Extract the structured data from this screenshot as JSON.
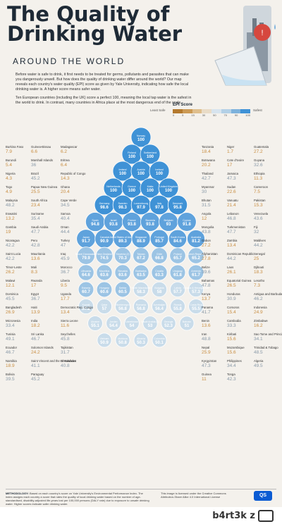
{
  "header": {
    "title_line1": "The Quality of",
    "title_line2": "Drinking Water",
    "subtitle": "AROUND THE WORLD",
    "intro_p1": "Before water is safe to drink, it first needs to be treated for germs, pollutants and parasites that can make you dangerously unwell. But how does the quality of drinking water differ around the world? Our map reveals each country's water quality (EPI) score as given by Yale University, indicating how safe the local drinking water is. A higher score means safer water.",
    "intro_p2": "Ten European countries (including the UK) score a perfect 100, meaning the local tap water is the safest in the world to drink. In contrast, many countries in Africa place at the most dangerous end of the scale."
  },
  "legend": {
    "title": "EPI Score",
    "least_safe": "Least Safe",
    "safest": "Safest",
    "ticks": [
      "0",
      "5",
      "15",
      "30",
      "50",
      "70",
      "90",
      "100"
    ],
    "colors": [
      "#b47a2e",
      "#cc9a55",
      "#dfbf8d",
      "#e9dcc7",
      "#d7e4ee",
      "#b3d0e6",
      "#7db2dc",
      "#3f92d6"
    ]
  },
  "footer": {
    "methodology_label": "METHODOLOGY:",
    "methodology": "Based on each country's score on Yale University's Environmental Performance Index. The index assigns each country a score that rates the quality of local drinking water based on the number of age-standardised, disability-adjusted life-years lost per 100,000 persons (DALY rate) due to exposure to unsafe drinking water. Higher scores indicate safer drinking water.",
    "note": "This image is licensed under the Creative Commons Attribution-Share Alike 4.0 International License",
    "logo": "QS"
  },
  "watermark": "b4rt3k z",
  "chart_data": {
    "type": "bubble-grid",
    "metric": "EPI Score",
    "countries": [
      {
        "name": "Burkina Faso",
        "value": 7.9
      },
      {
        "name": "Tanzania",
        "value": 18.4
      },
      {
        "name": "Guinea-Bissau",
        "value": 6.6
      },
      {
        "name": "Niger",
        "value": 1.7
      },
      {
        "name": "Madagascar",
        "value": 6.2
      },
      {
        "name": "Guatemala",
        "value": 27.2
      },
      {
        "name": "Burundi",
        "value": 5.4
      },
      {
        "name": "Botswana",
        "value": 20.2
      },
      {
        "name": "Marshall Islands",
        "value": 36.0
      },
      {
        "name": "Cote d'Ivoire",
        "value": 17.0
      },
      {
        "name": "Eritrea",
        "value": 6.4
      },
      {
        "name": "Guyana",
        "value": 32.6
      },
      {
        "name": "Nigeria",
        "value": 4.3
      },
      {
        "name": "Thailand",
        "value": 42.7
      },
      {
        "name": "Brazil",
        "value": 45.2
      },
      {
        "name": "Jamaica",
        "value": 47.3
      },
      {
        "name": "Republic of Congo",
        "value": 14.3
      },
      {
        "name": "Ethiopia",
        "value": 11.3
      },
      {
        "name": "Togo",
        "value": 4.9
      },
      {
        "name": "Myanmar",
        "value": 30.0
      },
      {
        "name": "Papua New Guinea",
        "value": 25.5
      },
      {
        "name": "Sudan",
        "value": 22.6
      },
      {
        "name": "Ghana",
        "value": 20.4
      },
      {
        "name": "Cameroon",
        "value": 7.5
      },
      {
        "name": "Malaysia",
        "value": 48.2
      },
      {
        "name": "Bhutan",
        "value": 31.5
      },
      {
        "name": "South Africa",
        "value": 23.4
      },
      {
        "name": "Vanuatu",
        "value": 21.4
      },
      {
        "name": "Cape Verde",
        "value": 34.5
      },
      {
        "name": "Pakistan",
        "value": 15.3
      },
      {
        "name": "Eswatini",
        "value": 13.2
      },
      {
        "name": "Angola",
        "value": 12.0
      },
      {
        "name": "Suriname",
        "value": 35.4
      },
      {
        "name": "Lebanon",
        "value": 46.8
      },
      {
        "name": "Samoa",
        "value": 40.4
      },
      {
        "name": "Venezuela",
        "value": 43.6
      },
      {
        "name": "Colombia",
        "value": 50.1
      },
      {
        "name": "Gambia",
        "value": 19.0
      },
      {
        "name": "Mongolia",
        "value": 43.8
      },
      {
        "name": "Moldova",
        "value": 50.8
      },
      {
        "name": "Saudi Arabia",
        "value": 47.7
      },
      {
        "name": "Turkmenistan",
        "value": 47.7
      },
      {
        "name": "Oman",
        "value": 44.4
      },
      {
        "name": "Fiji",
        "value": 32.0
      },
      {
        "name": "Nicaragua",
        "value": 42.2
      },
      {
        "name": "Gabon",
        "value": 27.2
      },
      {
        "name": "Peru",
        "value": 42.8
      },
      {
        "name": "Zambia",
        "value": 13.4
      },
      {
        "name": "Turkey",
        "value": 47.0
      },
      {
        "name": "Maldives",
        "value": 44.2
      },
      {
        "name": "Saint Lucia",
        "value": 42.2
      },
      {
        "name": "Afghanistan",
        "value": 27.8
      },
      {
        "name": "Mauritania",
        "value": 13.6
      },
      {
        "name": "Dominican Republic",
        "value": 44.2
      },
      {
        "name": "Iraq",
        "value": 45.9
      },
      {
        "name": "Albania",
        "value": 50.3
      },
      {
        "name": "Senegal",
        "value": 25.0
      },
      {
        "name": "Timor-Leste",
        "value": 26.2
      },
      {
        "name": "Belize",
        "value": 39.6
      },
      {
        "name": "Vietnam",
        "value": 50.9
      },
      {
        "name": "Mali",
        "value": 8.3
      },
      {
        "name": "Laos",
        "value": 26.1
      },
      {
        "name": "Morocco",
        "value": 36.7
      },
      {
        "name": "Bosnia & Herzegovina",
        "value": 57.3
      },
      {
        "name": "Djibouti",
        "value": 18.3
      },
      {
        "name": "Malawi",
        "value": 12.1
      },
      {
        "name": "Bahamas",
        "value": 47.8
      },
      {
        "name": "Rwanda",
        "value": 17.0
      },
      {
        "name": "Equatorial Guinea",
        "value": 26.5
      },
      {
        "name": "Liberia",
        "value": 9.5
      },
      {
        "name": "Lesotho",
        "value": 7.3
      },
      {
        "name": "Dominica",
        "value": 45.5
      },
      {
        "name": "Kenya",
        "value": 13.7
      },
      {
        "name": "Egypt",
        "value": 36.7
      },
      {
        "name": "Costa Rica",
        "value": 55.5
      },
      {
        "name": "Honduras",
        "value": 30.9
      },
      {
        "name": "Uganda",
        "value": 17.7
      },
      {
        "name": "Antigua and Barbuda",
        "value": 46.2
      },
      {
        "name": "Bangladesh",
        "value": 26.9
      },
      {
        "name": "Panama",
        "value": 41.7
      },
      {
        "name": "Azerbaijan",
        "value": 56.4
      },
      {
        "name": "Haiti",
        "value": 13.9
      },
      {
        "name": "Comoros",
        "value": 15.4
      },
      {
        "name": "Democratic Rep. Congo",
        "value": 13.4
      },
      {
        "name": "Indonesia",
        "value": 24.9
      },
      {
        "name": "Uzbekistan",
        "value": 54.0
      },
      {
        "name": "Micronesia",
        "value": 33.4
      },
      {
        "name": "Benin",
        "value": 13.6
      },
      {
        "name": "India",
        "value": 18.2
      },
      {
        "name": "Cambodia",
        "value": 33.3
      },
      {
        "name": "Sierra Leone",
        "value": 11.6
      },
      {
        "name": "Zimbabwe",
        "value": 16.2
      },
      {
        "name": "Tunisia",
        "value": 49.1
      },
      {
        "name": "Iran",
        "value": 48.8
      },
      {
        "name": "Sri Lanka",
        "value": 46.7
      },
      {
        "name": "Kiribati",
        "value": 15.6
      },
      {
        "name": "Seychelles",
        "value": 45.8
      },
      {
        "name": "Sao Tome and Principe",
        "value": 34.1
      },
      {
        "name": "Ecuador",
        "value": 46.7
      },
      {
        "name": "Nepal",
        "value": 25.9
      },
      {
        "name": "Solomon Islands",
        "value": 24.2
      },
      {
        "name": "Mozambique",
        "value": 15.6
      },
      {
        "name": "Tajikistan",
        "value": 31.7
      },
      {
        "name": "Trinidad & Tobago",
        "value": 48.5
      },
      {
        "name": "Namibia",
        "value": 18.9
      },
      {
        "name": "Kyrgyzstan",
        "value": 47.3
      },
      {
        "name": "Saint Vincent and the Grenadines",
        "value": 41.1
      },
      {
        "name": "Philippines",
        "value": 34.4
      },
      {
        "name": "El Salvador",
        "value": 40.8
      },
      {
        "name": "Montenegro",
        "value": 56.8
      },
      {
        "name": "Saudi Arabia (2)",
        "value": 53.0
      },
      {
        "name": "Algeria",
        "value": 49.5
      },
      {
        "name": "Bolivia",
        "value": 39.5
      },
      {
        "name": "Guinea",
        "value": 11.0
      },
      {
        "name": "Paraguay",
        "value": 45.2
      },
      {
        "name": "Guyana (2)",
        "value": null
      },
      {
        "name": "Norway",
        "value": 100
      },
      {
        "name": "Finland",
        "value": 100
      },
      {
        "name": "Switzerland",
        "value": 100
      },
      {
        "name": "Ireland",
        "value": 100
      },
      {
        "name": "Austria",
        "value": 100
      },
      {
        "name": "Iceland",
        "value": 100
      },
      {
        "name": "Netherlands",
        "value": 100
      },
      {
        "name": "Greece",
        "value": 100
      },
      {
        "name": "Malta",
        "value": 100
      },
      {
        "name": "United Kingdom",
        "value": 100
      },
      {
        "name": "Germany",
        "value": 98.6
      },
      {
        "name": "Luxembourg",
        "value": 97.9
      },
      {
        "name": "Denmark",
        "value": 95.8
      },
      {
        "name": "Spain",
        "value": 94.8
      },
      {
        "name": "Italy",
        "value": 97.8
      },
      {
        "name": "Sweden",
        "value": 98.3
      },
      {
        "name": "Israel",
        "value": 93.8
      },
      {
        "name": "Belgium",
        "value": 93.0
      },
      {
        "name": "Japan",
        "value": 91.7
      },
      {
        "name": "Canada",
        "value": 90.9
      },
      {
        "name": "Cyprus",
        "value": 91.8
      },
      {
        "name": "Singapore",
        "value": 88.9
      },
      {
        "name": "United States of America",
        "value": 89.3
      },
      {
        "name": "Australia",
        "value": 81.2
      },
      {
        "name": "France",
        "value": 93.8
      },
      {
        "name": "Portugal",
        "value": 85.7
      },
      {
        "name": "South Korea",
        "value": 84.6
      },
      {
        "name": "Brunei Darussalam",
        "value": 79.9
      },
      {
        "name": "Slovenia",
        "value": 93.8
      },
      {
        "name": "Czech Republic",
        "value": 65.2
      },
      {
        "name": "Taiwan",
        "value": 67.2
      },
      {
        "name": "Uruguay",
        "value": 61.8
      },
      {
        "name": "Croatia",
        "value": 63.3
      },
      {
        "name": "Chile",
        "value": 66.8
      },
      {
        "name": "Poland",
        "value": 65.7
      },
      {
        "name": "Slovenia (2)",
        "value": 70.3
      },
      {
        "name": "Qatar",
        "value": 57.0
      },
      {
        "name": "New Zealand",
        "value": 74.5
      },
      {
        "name": "Serbia",
        "value": 60.5
      },
      {
        "name": "Mauritius",
        "value": 63.6
      },
      {
        "name": "Lithuania",
        "value": 64.6
      },
      {
        "name": "Estonia",
        "value": 60.7
      },
      {
        "name": "Hungary",
        "value": 60.6
      },
      {
        "name": "Latvia",
        "value": 57.7
      },
      {
        "name": "Russia",
        "value": 55.8
      },
      {
        "name": "Ukraine",
        "value": 55.1
      },
      {
        "name": "Kuwait",
        "value": 57.2
      },
      {
        "name": "Georgia",
        "value": 52.3
      },
      {
        "name": "Armenia",
        "value": 61.7
      },
      {
        "name": "Slovakia",
        "value": 63.6
      },
      {
        "name": "Romania",
        "value": 56.8
      },
      {
        "name": "North Macedonia",
        "value": 58.3
      },
      {
        "name": "Bulgaria",
        "value": 58.0
      },
      {
        "name": "Jordan",
        "value": 54.4
      },
      {
        "name": "Bahrain",
        "value": 51.0
      },
      {
        "name": "Tonga",
        "value": 42.3
      },
      {
        "name": "Barbados",
        "value": 63.5
      }
    ]
  }
}
